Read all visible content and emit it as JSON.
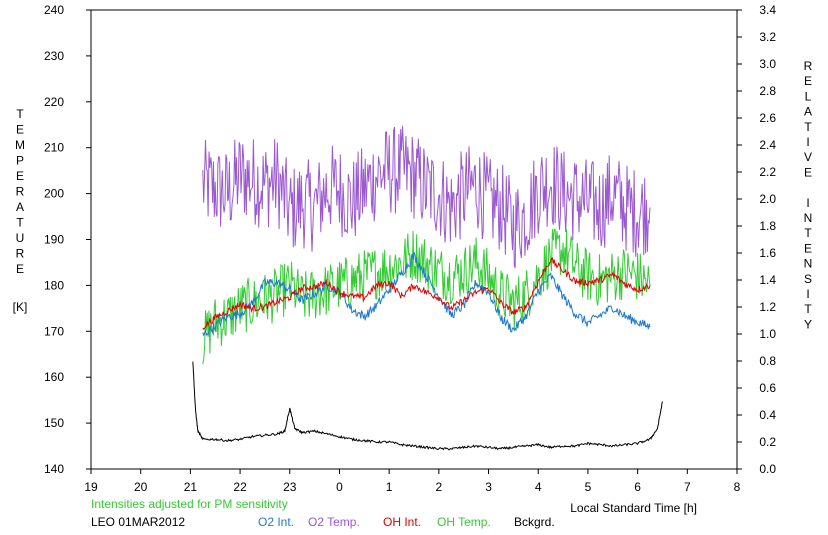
{
  "chart_data": {
    "type": "line",
    "title": "",
    "left_axis": {
      "label_letters": [
        "T",
        "E",
        "M",
        "P",
        "E",
        "R",
        "A",
        "T",
        "U",
        "R",
        "E"
      ],
      "unit": "[K]",
      "range": [
        140,
        240
      ],
      "ticks": [
        "140",
        "150",
        "160",
        "170",
        "180",
        "190",
        "200",
        "210",
        "220",
        "230",
        "240"
      ]
    },
    "right_axis": {
      "label_letters": [
        "R",
        "E",
        "L",
        "A",
        "T",
        "I",
        "V",
        "E",
        "",
        "I",
        "N",
        "T",
        "E",
        "N",
        "S",
        "I",
        "T",
        "Y"
      ],
      "range": [
        0.0,
        3.4
      ],
      "ticks": [
        "0.0",
        "0.2",
        "0.4",
        "0.6",
        "0.8",
        "1.0",
        "1.2",
        "1.4",
        "1.6",
        "1.8",
        "2.0",
        "2.2",
        "2.4",
        "2.6",
        "2.8",
        "3.0",
        "3.2",
        "3.4"
      ]
    },
    "x_axis": {
      "label": "Local Standard Time [h]",
      "range": [
        19,
        32
      ],
      "tick_labels": [
        "19",
        "20",
        "21",
        "22",
        "23",
        "0",
        "1",
        "2",
        "3",
        "4",
        "5",
        "6",
        "7",
        "8"
      ]
    },
    "note": "Intensities adjusted for PM sensitivity",
    "station": "LEO 01MAR2012",
    "grid": false,
    "legend_placement": "bottom",
    "legend": [
      {
        "label": "O2 Int.",
        "color": "#1f78d0"
      },
      {
        "label": "O2 Temp.",
        "color": "#9b59d0"
      },
      {
        "label": "OH Int.",
        "color": "#e00000"
      },
      {
        "label": "OH Temp.",
        "color": "#33cc33"
      },
      {
        "label": "Bckgrd.",
        "color": "#000000"
      }
    ],
    "series": [
      {
        "name": "O2 Temp.",
        "axis": "left",
        "color": "#9b59d0",
        "x": [
          21.25,
          21.5,
          21.75,
          22.0,
          22.25,
          22.5,
          22.75,
          23.0,
          23.25,
          23.5,
          23.75,
          24.0,
          24.25,
          24.5,
          24.75,
          25.0,
          25.25,
          25.5,
          25.75,
          26.0,
          26.25,
          26.5,
          26.75,
          27.0,
          27.25,
          27.5,
          27.75,
          28.0,
          28.25,
          28.5,
          28.75,
          29.0,
          29.25,
          29.5,
          29.75,
          30.0,
          30.25
        ],
        "y": [
          202,
          201,
          200,
          204,
          203,
          202,
          203,
          196,
          198,
          197,
          201,
          201,
          198,
          201,
          204,
          205,
          205,
          204,
          201,
          200,
          197,
          200,
          202,
          198,
          197,
          193,
          195,
          201,
          203,
          200,
          199,
          198,
          197,
          200,
          197,
          196,
          197
        ]
      },
      {
        "name": "OH Temp.",
        "axis": "left",
        "color": "#33cc33",
        "x": [
          21.25,
          21.5,
          21.75,
          22.0,
          22.25,
          22.5,
          22.75,
          23.0,
          23.25,
          23.5,
          23.75,
          24.0,
          24.25,
          24.5,
          24.75,
          25.0,
          25.25,
          25.5,
          25.75,
          26.0,
          26.25,
          26.5,
          26.75,
          27.0,
          27.25,
          27.5,
          27.75,
          28.0,
          28.25,
          28.5,
          28.75,
          29.0,
          29.25,
          29.5,
          29.75,
          30.0,
          30.25
        ],
        "y": [
          168,
          172,
          173,
          175,
          176,
          177,
          178,
          180,
          177,
          178,
          179,
          180,
          181,
          182,
          183,
          184,
          185,
          187,
          185,
          183,
          182,
          183,
          185,
          182,
          178,
          176,
          178,
          182,
          186,
          188,
          184,
          182,
          181,
          182,
          183,
          182,
          180
        ]
      },
      {
        "name": "O2 Int.",
        "axis": "right",
        "color": "#1f78d0",
        "x": [
          21.25,
          21.5,
          21.75,
          22.0,
          22.25,
          22.5,
          22.75,
          23.0,
          23.25,
          23.5,
          23.75,
          24.0,
          24.25,
          24.5,
          24.75,
          25.0,
          25.25,
          25.5,
          25.75,
          26.0,
          26.25,
          26.5,
          26.75,
          27.0,
          27.25,
          27.5,
          27.75,
          28.0,
          28.25,
          28.5,
          28.75,
          29.0,
          29.25,
          29.5,
          29.75,
          30.0,
          30.25
        ],
        "y": [
          0.99,
          1.06,
          1.13,
          1.15,
          1.23,
          1.38,
          1.38,
          1.33,
          1.25,
          1.3,
          1.36,
          1.31,
          1.18,
          1.13,
          1.21,
          1.33,
          1.45,
          1.58,
          1.43,
          1.28,
          1.14,
          1.21,
          1.38,
          1.31,
          1.12,
          1.03,
          1.13,
          1.32,
          1.43,
          1.28,
          1.15,
          1.08,
          1.14,
          1.2,
          1.13,
          1.09,
          1.05
        ]
      },
      {
        "name": "OH Int.",
        "axis": "right",
        "color": "#e00000",
        "x": [
          21.25,
          21.5,
          21.75,
          22.0,
          22.25,
          22.5,
          22.75,
          23.0,
          23.25,
          23.5,
          23.75,
          24.0,
          24.25,
          24.5,
          24.75,
          25.0,
          25.25,
          25.5,
          25.75,
          26.0,
          26.25,
          26.5,
          26.75,
          27.0,
          27.25,
          27.5,
          27.75,
          28.0,
          28.25,
          28.5,
          28.75,
          29.0,
          29.25,
          29.5,
          29.75,
          30.0,
          30.25
        ],
        "y": [
          1.05,
          1.12,
          1.17,
          1.22,
          1.19,
          1.2,
          1.24,
          1.27,
          1.34,
          1.35,
          1.38,
          1.31,
          1.28,
          1.27,
          1.36,
          1.38,
          1.28,
          1.36,
          1.31,
          1.27,
          1.19,
          1.25,
          1.31,
          1.34,
          1.23,
          1.16,
          1.2,
          1.39,
          1.55,
          1.47,
          1.39,
          1.38,
          1.4,
          1.44,
          1.37,
          1.33,
          1.36
        ]
      },
      {
        "name": "Bckgrd.",
        "axis": "right",
        "color": "#000000",
        "x": [
          21.05,
          21.1,
          21.15,
          21.25,
          21.5,
          21.75,
          22.0,
          22.25,
          22.5,
          22.75,
          22.9,
          23.0,
          23.1,
          23.25,
          23.5,
          23.75,
          24.0,
          24.25,
          24.5,
          24.75,
          25.0,
          25.25,
          25.5,
          25.75,
          26.0,
          26.25,
          26.5,
          26.75,
          27.0,
          27.25,
          27.5,
          27.75,
          28.0,
          28.25,
          28.5,
          28.75,
          29.0,
          29.25,
          29.5,
          29.75,
          30.0,
          30.25,
          30.4,
          30.5
        ],
        "y": [
          0.8,
          0.45,
          0.28,
          0.22,
          0.22,
          0.21,
          0.22,
          0.24,
          0.25,
          0.26,
          0.28,
          0.45,
          0.3,
          0.27,
          0.28,
          0.26,
          0.24,
          0.22,
          0.21,
          0.2,
          0.2,
          0.18,
          0.17,
          0.16,
          0.15,
          0.15,
          0.16,
          0.17,
          0.16,
          0.15,
          0.16,
          0.17,
          0.18,
          0.16,
          0.17,
          0.17,
          0.19,
          0.18,
          0.17,
          0.18,
          0.19,
          0.22,
          0.3,
          0.5
        ]
      }
    ]
  }
}
